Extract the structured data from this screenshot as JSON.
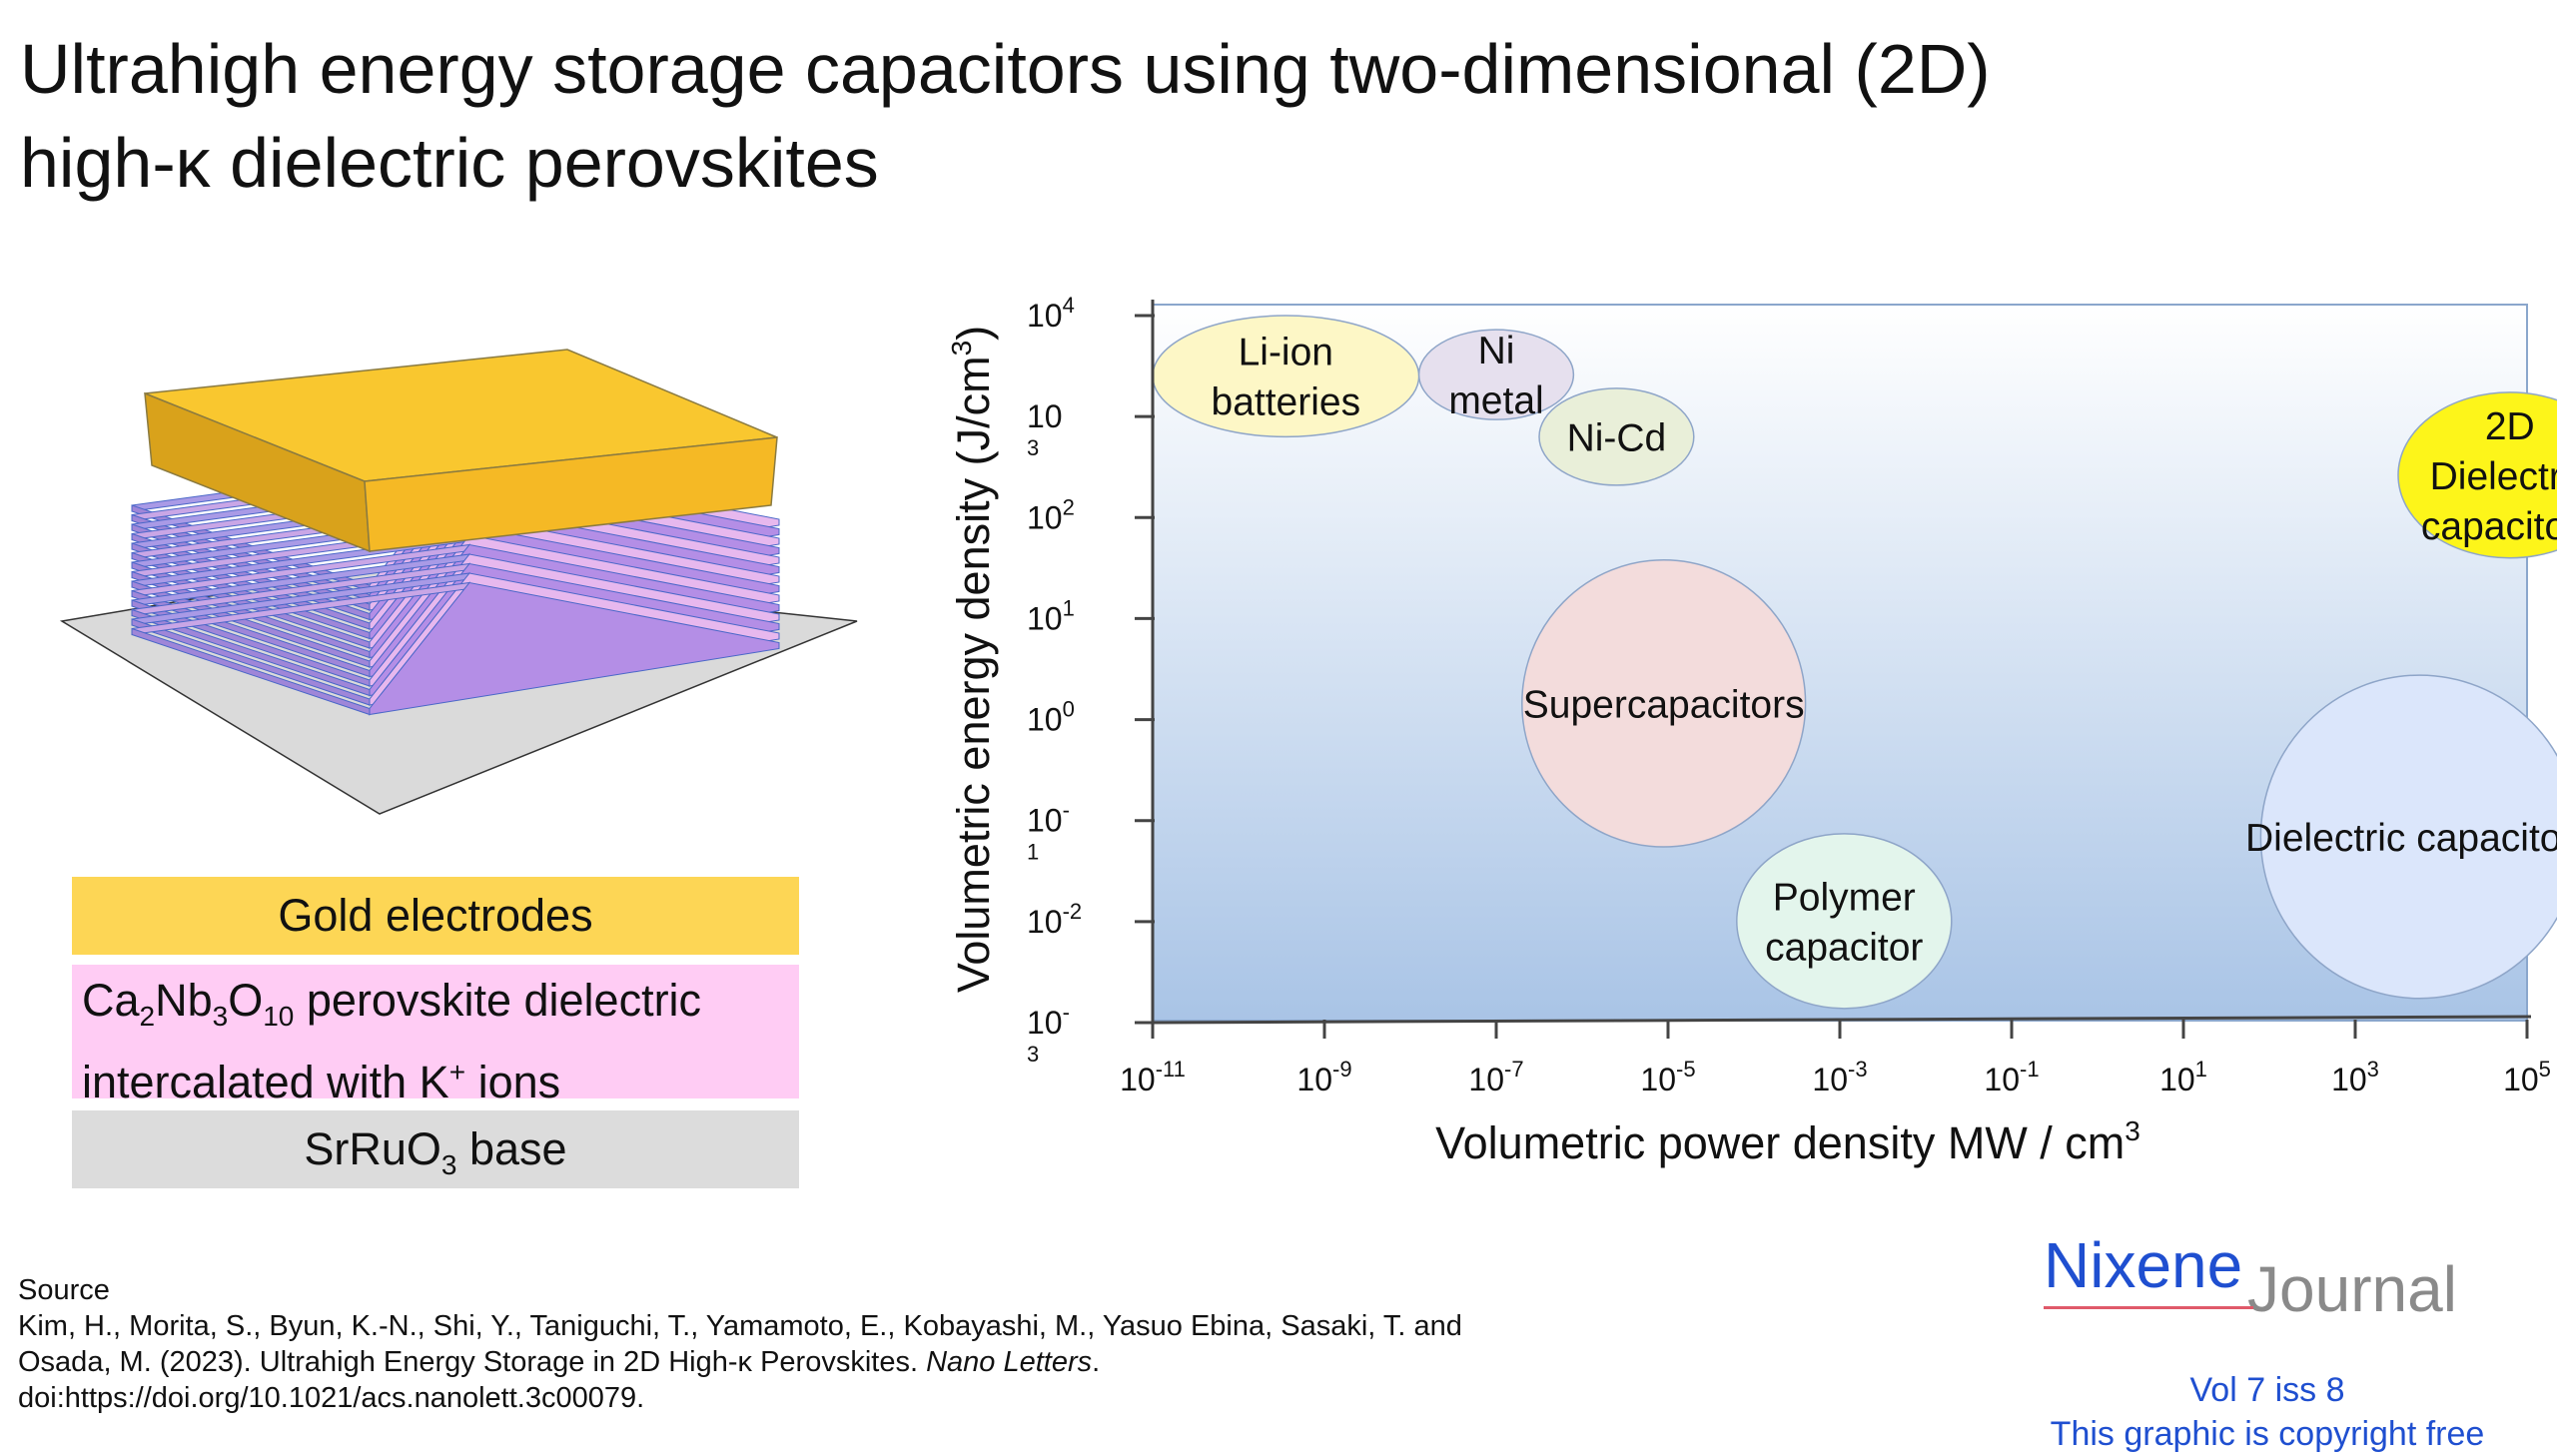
{
  "title_line1": "Ultrahigh energy storage capacitors using two-dimensional (2D)",
  "title_line2": "high-κ dielectric perovskites",
  "legend": {
    "gold": "Gold electrodes",
    "pink_ca": "Ca",
    "pink_sub2": "2",
    "pink_nb": "Nb",
    "pink_sub3": "3",
    "pink_o": "O",
    "pink_sub10": "10",
    "pink_rest1": " perovskite dielectric",
    "pink_line2_a": "intercalated with K",
    "pink_sup": "+",
    "pink_line2_b": " ions",
    "gray_a": "SrRuO",
    "gray_sub": "3",
    "gray_b": " base"
  },
  "colors": {
    "gold": "#fdd655",
    "pink": "#ffccf4",
    "gray": "#dcdcdc",
    "plot_top": "#ffffff",
    "plot_bottom": "#a9c4e6"
  },
  "chart_data": {
    "type": "scatter",
    "xlabel_a": "Volumetric power density MW / cm",
    "xlabel_sup": "3",
    "ylabel_a": "Volumetric energy density (J/cm",
    "ylabel_sup": "3",
    "ylabel_b": ")",
    "x_scale": "log",
    "y_scale": "log",
    "xlim_exp": [
      -11,
      5
    ],
    "ylim_exp": [
      -3,
      4
    ],
    "x_ticks": [
      {
        "exp": -11,
        "base": "10",
        "sup": "-11"
      },
      {
        "exp": -9,
        "base": "10",
        "sup": "-9"
      },
      {
        "exp": -7,
        "base": "10",
        "sup": "-7"
      },
      {
        "exp": -5,
        "base": "10",
        "sup": "-5"
      },
      {
        "exp": -3,
        "base": "10",
        "sup": "-3"
      },
      {
        "exp": -1,
        "base": "10",
        "sup": "-1"
      },
      {
        "exp": 1,
        "base": "10",
        "sup": "1"
      },
      {
        "exp": 3,
        "base": "10",
        "sup": "3"
      },
      {
        "exp": 5,
        "base": "10",
        "sup": "5"
      }
    ],
    "y_ticks": [
      {
        "exp": 4,
        "base": "10",
        "sup": "4",
        "sub": ""
      },
      {
        "exp": 3,
        "base": "10",
        "sup": "",
        "sub": "3"
      },
      {
        "exp": 2,
        "base": "10",
        "sup": "2",
        "sub": ""
      },
      {
        "exp": 1,
        "base": "10",
        "sup": "1",
        "sub": ""
      },
      {
        "exp": 0,
        "base": "10",
        "sup": "0",
        "sub": ""
      },
      {
        "exp": -1,
        "base": "10",
        "sup": "-",
        "sub": "1"
      },
      {
        "exp": -2,
        "base": "10",
        "sup": "-2",
        "sub": ""
      },
      {
        "exp": -3,
        "base": "10",
        "sup": "-",
        "sub": "3"
      }
    ],
    "regions": [
      {
        "lines": [
          "Li-ion",
          "batteries"
        ],
        "x_exp": [
          -11.0,
          -7.9
        ],
        "y_exp": [
          2.8,
          4.0
        ],
        "color": "#fdf7c6"
      },
      {
        "lines": [
          "Ni",
          "metal"
        ],
        "x_exp": [
          -7.9,
          -6.1
        ],
        "y_exp": [
          2.97,
          3.86
        ],
        "color": "#e6e0ee"
      },
      {
        "lines": [
          "Ni-Cd"
        ],
        "x_exp": [
          -6.5,
          -4.7
        ],
        "y_exp": [
          2.32,
          3.28
        ],
        "color": "#e9efd9"
      },
      {
        "lines": [
          "Supercapacitors"
        ],
        "x_exp": [
          -6.7,
          -3.4
        ],
        "y_exp": [
          -1.26,
          1.58
        ],
        "color": "#f3dcdc"
      },
      {
        "lines": [
          "Polymer",
          "capacitor"
        ],
        "x_exp": [
          -4.2,
          -1.7
        ],
        "y_exp": [
          -2.86,
          -1.13
        ],
        "color": "#e3f5ec"
      },
      {
        "lines": [
          "Dielectric capacitors"
        ],
        "x_exp": [
          1.9,
          5.6
        ],
        "y_exp": [
          -2.76,
          0.44
        ],
        "color": "#dbe6fb"
      },
      {
        "lines": [
          "2D",
          "Dielectric",
          "capacitors"
        ],
        "x_exp": [
          3.5,
          6.1
        ],
        "y_exp": [
          1.6,
          3.24
        ],
        "color": "#fdf51a"
      }
    ]
  },
  "source": {
    "heading": "Source",
    "line1": "Kim, H., Morita, S., Byun, K.-N., Shi, Y., Taniguchi, T., Yamamoto, E., Kobayashi, M., Yasuo Ebina, Sasaki, T. and",
    "line2_a": "Osada, M. (2023). Ultrahigh Energy Storage in 2D High-κ Perovskites. ",
    "line2_journal": "Nano Letters",
    "line2_b": ".",
    "line3": "doi:https://doi.org/10.1021/acs.nanolett.3c00079."
  },
  "journal": {
    "logo_a": "Nixene",
    "logo_b": "Journal",
    "vol": "Vol 7 iss 8",
    "free": "This graphic is copyright free"
  }
}
